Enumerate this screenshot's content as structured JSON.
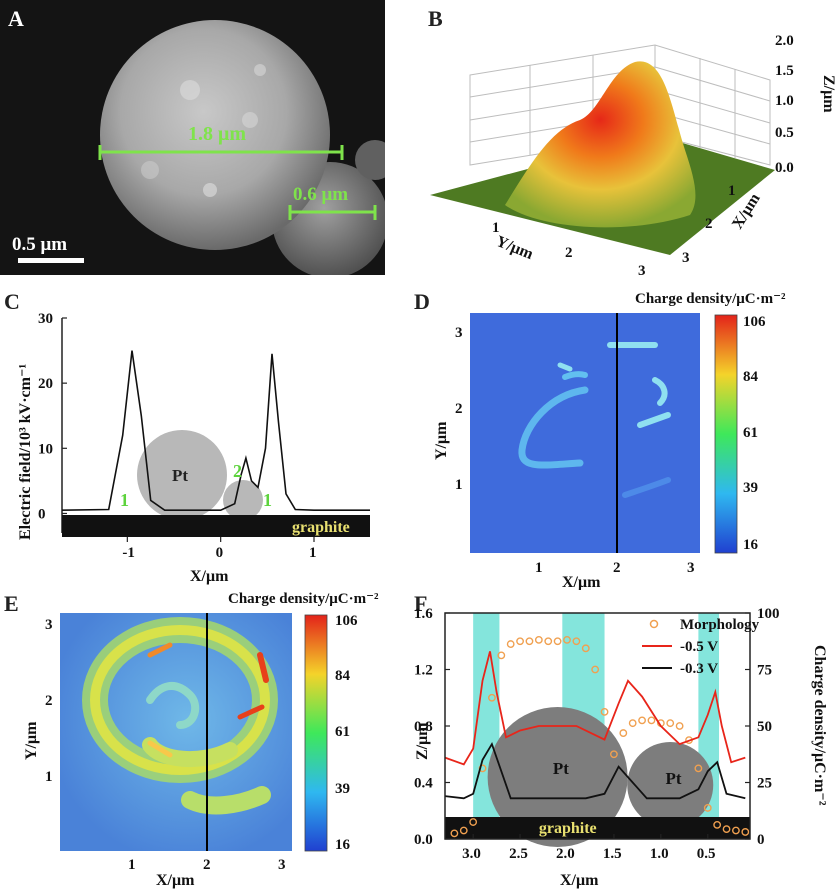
{
  "panels": {
    "A": {
      "label": "A",
      "scale_bar": "0.5 μm",
      "measure_large": "1.8 μm",
      "measure_small": "0.6 μm"
    },
    "B": {
      "label": "B",
      "z_label": "Z/μm",
      "x_label": "X/μm",
      "y_label": "Y/μm"
    },
    "C": {
      "label": "C",
      "ylabel": "Electric field/10³ kV·cm⁻¹",
      "xlabel": "X/μm",
      "substrate": "graphite",
      "particle": "Pt",
      "peak_labels": [
        "1",
        "2",
        "1"
      ]
    },
    "D": {
      "label": "D",
      "colorbar_title": "Charge density/μC·m⁻²",
      "xlabel": "X/μm",
      "ylabel": "Y/μm"
    },
    "E": {
      "label": "E",
      "colorbar_title": "Charge density/μC·m⁻²",
      "xlabel": "X/μm",
      "ylabel": "Y/μm"
    },
    "F": {
      "label": "F",
      "xlabel": "X/μm",
      "ylabel_left": "Z/μm",
      "ylabel_right": "Charge density/μC·m⁻²",
      "substrate": "graphite",
      "particle_labels": [
        "Pt",
        "Pt"
      ]
    }
  },
  "colors": {
    "green_marker": "#7fe34b",
    "hot": "#e8251a",
    "peak_teal": "#6ee0d6",
    "particle_gray": "#808080"
  },
  "chart_data": [
    {
      "panel": "B",
      "type": "surface",
      "z_ticks": [
        "0.0",
        "0.5",
        "1.0",
        "1.5",
        "2.0"
      ],
      "x_ticks": [
        "1",
        "2",
        "3"
      ],
      "y_ticks": [
        "1",
        "2",
        "3"
      ],
      "zlim": [
        0,
        2.0
      ]
    },
    {
      "panel": "C",
      "type": "line",
      "x": [
        -1.7,
        -1.2,
        -1.05,
        -0.95,
        -0.85,
        -0.75,
        -0.6,
        0.0,
        0.15,
        0.22,
        0.27,
        0.33,
        0.4,
        0.48,
        0.55,
        0.62,
        0.7,
        0.8,
        1.0,
        1.6
      ],
      "y": [
        0.5,
        0.6,
        12,
        25,
        15,
        2,
        0.5,
        0.5,
        1.5,
        6,
        8.5,
        5,
        4,
        10,
        24.5,
        14,
        3,
        0.6,
        0.5,
        0.5
      ],
      "xlim": [
        -1.7,
        1.6
      ],
      "ylim": [
        -3,
        30
      ],
      "x_ticks": [
        "-1",
        "0",
        "1"
      ],
      "y_ticks": [
        "0",
        "10",
        "20",
        "30"
      ]
    },
    {
      "panel": "D",
      "type": "heatmap",
      "x_ticks": [
        "1",
        "2",
        "3"
      ],
      "y_ticks": [
        "1",
        "2",
        "3"
      ],
      "colorbar_ticks": [
        "16",
        "39",
        "61",
        "84",
        "106"
      ],
      "clim": [
        16,
        106
      ]
    },
    {
      "panel": "E",
      "type": "heatmap",
      "x_ticks": [
        "1",
        "2",
        "3"
      ],
      "y_ticks": [
        "1",
        "2",
        "3"
      ],
      "colorbar_ticks": [
        "16",
        "39",
        "61",
        "84",
        "106"
      ],
      "clim": [
        16,
        106
      ]
    },
    {
      "panel": "F",
      "type": "line",
      "x_ticks": [
        "3.0",
        "2.5",
        "2.0",
        "1.5",
        "1.0",
        "0.5"
      ],
      "y_left_ticks": [
        "0.0",
        "0.4",
        "0.8",
        "1.2",
        "1.6"
      ],
      "y_right_ticks": [
        "0",
        "25",
        "50",
        "75",
        "100"
      ],
      "xlim": [
        3.3,
        0.05
      ],
      "ylim_left": [
        0,
        1.6
      ],
      "ylim_right": [
        0,
        100
      ],
      "legend": "top-right",
      "series": [
        {
          "name": "Morphology",
          "style": "circles",
          "color": "#f0a050",
          "x": [
            3.2,
            3.1,
            3.0,
            2.9,
            2.8,
            2.7,
            2.6,
            2.5,
            2.4,
            2.3,
            2.2,
            2.1,
            2.0,
            1.9,
            1.8,
            1.7,
            1.6,
            1.5,
            1.4,
            1.3,
            1.2,
            1.1,
            1.0,
            0.9,
            0.8,
            0.7,
            0.6,
            0.5,
            0.4,
            0.3,
            0.2,
            0.1
          ],
          "y": [
            0.04,
            0.06,
            0.12,
            0.5,
            1.0,
            1.3,
            1.38,
            1.4,
            1.4,
            1.41,
            1.4,
            1.4,
            1.41,
            1.4,
            1.35,
            1.2,
            0.9,
            0.6,
            0.75,
            0.82,
            0.84,
            0.84,
            0.82,
            0.82,
            0.8,
            0.7,
            0.5,
            0.22,
            0.1,
            0.07,
            0.06,
            0.05
          ]
        },
        {
          "name": "-0.5 V",
          "color": "#e8251a",
          "x": [
            3.3,
            3.1,
            3.0,
            2.9,
            2.82,
            2.75,
            2.65,
            2.5,
            2.3,
            2.1,
            1.9,
            1.75,
            1.6,
            1.45,
            1.35,
            1.2,
            1.0,
            0.8,
            0.6,
            0.5,
            0.42,
            0.35,
            0.25,
            0.1
          ],
          "y": [
            36,
            33,
            40,
            70,
            83,
            65,
            45,
            48,
            50,
            50,
            50,
            47,
            44,
            60,
            70,
            63,
            50,
            42,
            45,
            55,
            65,
            50,
            34,
            36
          ]
        },
        {
          "name": "-0.3 V",
          "color": "#111111",
          "x": [
            3.3,
            3.1,
            3.0,
            2.9,
            2.8,
            2.7,
            2.6,
            2.4,
            2.2,
            2.0,
            1.8,
            1.6,
            1.45,
            1.3,
            1.15,
            1.0,
            0.8,
            0.6,
            0.5,
            0.4,
            0.3,
            0.1
          ],
          "y": [
            19,
            18,
            20,
            35,
            42,
            30,
            18,
            18,
            18,
            18,
            18,
            20,
            32,
            25,
            18,
            18,
            18,
            22,
            30,
            34,
            20,
            18
          ]
        }
      ]
    }
  ]
}
